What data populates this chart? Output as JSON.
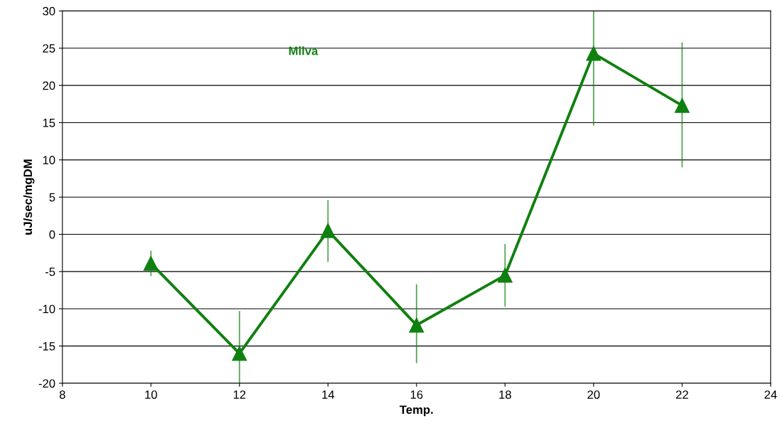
{
  "chart_data": {
    "type": "line",
    "xlabel": "Temp.",
    "ylabel": "uJ/sec/mgDM",
    "x": [
      10,
      12,
      14,
      16,
      18,
      20,
      22
    ],
    "series": [
      {
        "color": "#108010",
        "values": [
          -3.9,
          -16.0,
          0.5,
          -12.2,
          -5.5,
          24.3,
          17.3
        ],
        "errors": [
          [
            -5.6,
            -2.2
          ],
          [
            -20,
            -10.3
          ],
          [
            -3.7,
            4.6
          ],
          [
            -17.3,
            -6.7
          ],
          [
            -9.7,
            -1.3
          ],
          [
            14.6,
            30
          ],
          [
            9.0,
            25.8
          ]
        ]
      }
    ],
    "annotations": [
      "Milva"
    ],
    "xlim": [
      8,
      24
    ],
    "xticks": [
      8,
      10,
      12,
      14,
      16,
      18,
      20,
      22,
      24
    ],
    "ylim": [
      -20,
      30
    ],
    "yticks": [
      -20,
      -15,
      -10,
      -5,
      0,
      5,
      10,
      15,
      20,
      25,
      30
    ],
    "grid": "y",
    "marker": "triangle",
    "line_style": "solid",
    "legend": false
  }
}
